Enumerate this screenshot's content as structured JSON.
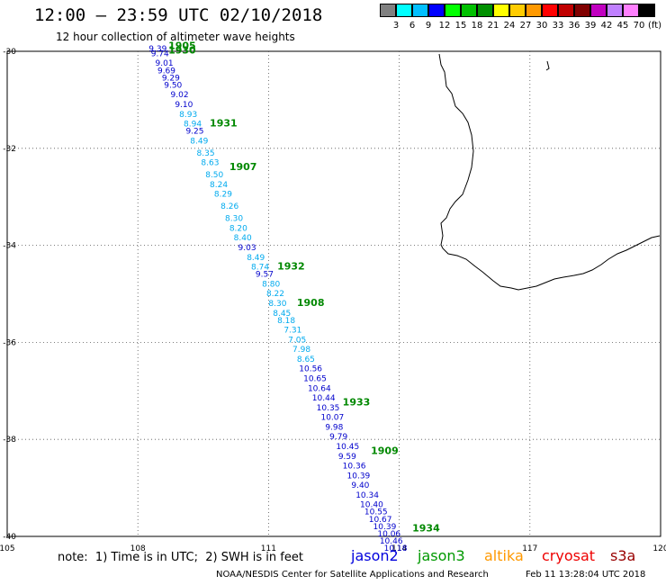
{
  "header": {
    "title": "12:00 – 23:59 UTC 02/10/2018",
    "subtitle": "12 hour collection of altimeter wave heights"
  },
  "legend": {
    "unit": "(ft)",
    "colors": [
      "#808080",
      "#00ffff",
      "#00bfff",
      "#0000ff",
      "#00ff00",
      "#00c000",
      "#009000",
      "#ffff00",
      "#ffcc00",
      "#ff9900",
      "#ff0000",
      "#c00000",
      "#800000",
      "#c000c0",
      "#c080ff",
      "#ff80ff",
      "#000000"
    ],
    "labels": [
      "3",
      "6",
      "9",
      "12",
      "15",
      "18",
      "21",
      "24",
      "27",
      "30",
      "33",
      "36",
      "39",
      "42",
      "45",
      "70"
    ]
  },
  "axes": {
    "lat_labels": [
      "-30",
      "-32",
      "-34",
      "-36",
      "-38",
      "-40"
    ],
    "lon_labels": [
      "105",
      "108",
      "111",
      "114",
      "117",
      "120"
    ]
  },
  "wave_labels": [
    {
      "lon": 108.25,
      "lat": -30.0,
      "value": "9.39",
      "color": "#0000cc"
    },
    {
      "lon": 108.3,
      "lat": -30.1,
      "value": "9.74",
      "color": "#0000cc"
    },
    {
      "lon": 108.4,
      "lat": -30.3,
      "value": "9.01",
      "color": "#0000cc"
    },
    {
      "lon": 108.45,
      "lat": -30.45,
      "value": "9.69",
      "color": "#0000cc"
    },
    {
      "lon": 108.55,
      "lat": -30.6,
      "value": "9.29",
      "color": "#0000cc"
    },
    {
      "lon": 108.6,
      "lat": -30.75,
      "value": "9.50",
      "color": "#0000cc"
    },
    {
      "lon": 108.75,
      "lat": -30.95,
      "value": "9.02",
      "color": "#0000cc"
    },
    {
      "lon": 108.85,
      "lat": -31.15,
      "value": "9.10",
      "color": "#0000cc"
    },
    {
      "lon": 108.95,
      "lat": -31.35,
      "value": "8.93",
      "color": "#00aaee"
    },
    {
      "lon": 109.05,
      "lat": -31.55,
      "value": "8.94",
      "color": "#00aaee"
    },
    {
      "lon": 109.1,
      "lat": -31.7,
      "value": "9.25",
      "color": "#0000cc"
    },
    {
      "lon": 109.2,
      "lat": -31.9,
      "value": "8.49",
      "color": "#00aaee"
    },
    {
      "lon": 109.35,
      "lat": -32.15,
      "value": "8.35",
      "color": "#00aaee"
    },
    {
      "lon": 109.45,
      "lat": -32.35,
      "value": "8.63",
      "color": "#00aaee"
    },
    {
      "lon": 109.55,
      "lat": -32.6,
      "value": "8.50",
      "color": "#00aaee"
    },
    {
      "lon": 109.65,
      "lat": -32.8,
      "value": "8.24",
      "color": "#00aaee"
    },
    {
      "lon": 109.75,
      "lat": -33.0,
      "value": "8.29",
      "color": "#00aaee"
    },
    {
      "lon": 109.9,
      "lat": -33.25,
      "value": "8.26",
      "color": "#00aaee"
    },
    {
      "lon": 110.0,
      "lat": -33.5,
      "value": "8.30",
      "color": "#00aaee"
    },
    {
      "lon": 110.1,
      "lat": -33.7,
      "value": "8.20",
      "color": "#00aaee"
    },
    {
      "lon": 110.2,
      "lat": -33.9,
      "value": "8.40",
      "color": "#00aaee"
    },
    {
      "lon": 110.3,
      "lat": -34.1,
      "value": "9.03",
      "color": "#0000cc"
    },
    {
      "lon": 110.5,
      "lat": -34.3,
      "value": "8.49",
      "color": "#00aaee"
    },
    {
      "lon": 110.6,
      "lat": -34.5,
      "value": "8.74",
      "color": "#00aaee"
    },
    {
      "lon": 110.7,
      "lat": -34.65,
      "value": "9.57",
      "color": "#0000cc"
    },
    {
      "lon": 110.85,
      "lat": -34.85,
      "value": "8.80",
      "color": "#00aaee"
    },
    {
      "lon": 110.95,
      "lat": -35.05,
      "value": "8.22",
      "color": "#00aaee"
    },
    {
      "lon": 111.0,
      "lat": -35.25,
      "value": "8.30",
      "color": "#00aaee"
    },
    {
      "lon": 111.1,
      "lat": -35.45,
      "value": "8.45",
      "color": "#00aaee"
    },
    {
      "lon": 111.2,
      "lat": -35.6,
      "value": "8.18",
      "color": "#00aaee"
    },
    {
      "lon": 111.35,
      "lat": -35.8,
      "value": "7.31",
      "color": "#00aaee"
    },
    {
      "lon": 111.45,
      "lat": -36.0,
      "value": "7.05",
      "color": "#00aaee"
    },
    {
      "lon": 111.55,
      "lat": -36.2,
      "value": "7.98",
      "color": "#00aaee"
    },
    {
      "lon": 111.65,
      "lat": -36.4,
      "value": "8.65",
      "color": "#00aaee"
    },
    {
      "lon": 111.7,
      "lat": -36.6,
      "value": "10.56",
      "color": "#0000cc"
    },
    {
      "lon": 111.8,
      "lat": -36.8,
      "value": "10.65",
      "color": "#0000cc"
    },
    {
      "lon": 111.9,
      "lat": -37.0,
      "value": "10.64",
      "color": "#0000cc"
    },
    {
      "lon": 112.0,
      "lat": -37.2,
      "value": "10.44",
      "color": "#0000cc"
    },
    {
      "lon": 112.1,
      "lat": -37.4,
      "value": "10.35",
      "color": "#0000cc"
    },
    {
      "lon": 112.2,
      "lat": -37.6,
      "value": "10.07",
      "color": "#0000cc"
    },
    {
      "lon": 112.3,
      "lat": -37.8,
      "value": "9.98",
      "color": "#0000cc"
    },
    {
      "lon": 112.4,
      "lat": -38.0,
      "value": "9.79",
      "color": "#0000cc"
    },
    {
      "lon": 112.55,
      "lat": -38.2,
      "value": "10.45",
      "color": "#0000cc"
    },
    {
      "lon": 112.6,
      "lat": -38.4,
      "value": "9.59",
      "color": "#0000cc"
    },
    {
      "lon": 112.7,
      "lat": -38.6,
      "value": "10.36",
      "color": "#0000cc"
    },
    {
      "lon": 112.8,
      "lat": -38.8,
      "value": "10.39",
      "color": "#0000cc"
    },
    {
      "lon": 112.9,
      "lat": -39.0,
      "value": "9.40",
      "color": "#0000cc"
    },
    {
      "lon": 113.0,
      "lat": -39.2,
      "value": "10.34",
      "color": "#0000cc"
    },
    {
      "lon": 113.1,
      "lat": -39.4,
      "value": "10.40",
      "color": "#0000cc"
    },
    {
      "lon": 113.2,
      "lat": -39.55,
      "value": "10.55",
      "color": "#0000cc"
    },
    {
      "lon": 113.3,
      "lat": -39.7,
      "value": "10.67",
      "color": "#0000cc"
    },
    {
      "lon": 113.4,
      "lat": -39.85,
      "value": "10.39",
      "color": "#0000cc"
    },
    {
      "lon": 113.5,
      "lat": -40.0,
      "value": "10.06",
      "color": "#0000cc"
    },
    {
      "lon": 113.55,
      "lat": -40.15,
      "value": "10.46",
      "color": "#0000cc"
    },
    {
      "lon": 113.65,
      "lat": -40.3,
      "value": "10.18",
      "color": "#0000cc"
    }
  ],
  "time_labels": [
    {
      "lon": 108.7,
      "lat": -29.95,
      "text": "1905"
    },
    {
      "lon": 108.7,
      "lat": -30.05,
      "text": "1930"
    },
    {
      "lon": 109.65,
      "lat": -31.55,
      "text": "1931"
    },
    {
      "lon": 110.1,
      "lat": -32.45,
      "text": "1907"
    },
    {
      "lon": 111.2,
      "lat": -34.5,
      "text": "1932"
    },
    {
      "lon": 111.65,
      "lat": -35.25,
      "text": "1908"
    },
    {
      "lon": 112.7,
      "lat": -37.3,
      "text": "1933"
    },
    {
      "lon": 113.35,
      "lat": -38.3,
      "text": "1909"
    },
    {
      "lon": 114.3,
      "lat": -39.9,
      "text": "1934"
    }
  ],
  "footer": {
    "note": "note:  1) Time is in UTC;  2) SWH is in feet",
    "satellites": [
      {
        "name": "jason2",
        "color": "#0000dd"
      },
      {
        "name": "jason3",
        "color": "#009900"
      },
      {
        "name": "altika",
        "color": "#ff9900"
      },
      {
        "name": "cryosat",
        "color": "#ee0000"
      },
      {
        "name": "s3a",
        "color": "#990000"
      }
    ],
    "credit": "NOAA/NESDIS Center for Satellite Applications and Research",
    "timestamp": "Feb 11 13:28:04 UTC 2018"
  }
}
